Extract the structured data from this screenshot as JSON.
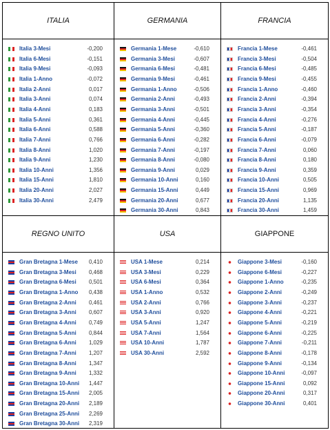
{
  "panels": [
    {
      "title": "ITALIA",
      "rows": [
        {
          "name": "Italia 3-Mesi",
          "value": "-0,200"
        },
        {
          "name": "Italia 6-Mesi",
          "value": "-0,151"
        },
        {
          "name": "Italia 9-Mesi",
          "value": "-0,093"
        },
        {
          "name": "Italia 1-Anno",
          "value": "-0,072"
        },
        {
          "name": "Italia 2-Anni",
          "value": "0,017"
        },
        {
          "name": "Italia 3-Anni",
          "value": "0,074"
        },
        {
          "name": "Italia 4-Anni",
          "value": "0,183"
        },
        {
          "name": "Italia 5-Anni",
          "value": "0,361"
        },
        {
          "name": "Italia 6-Anni",
          "value": "0,588"
        },
        {
          "name": "Italia 7-Anni",
          "value": "0,766"
        },
        {
          "name": "Italia 8-Anni",
          "value": "1,020"
        },
        {
          "name": "Italia 9-Anni",
          "value": "1,230"
        },
        {
          "name": "Italia 10-Anni",
          "value": "1,356"
        },
        {
          "name": "Italia 15-Anni",
          "value": "1,810"
        },
        {
          "name": "Italia 20-Anni",
          "value": "2,027"
        },
        {
          "name": "Italia 30-Anni",
          "value": "2,479"
        }
      ]
    },
    {
      "title": "GERMANIA",
      "rows": [
        {
          "name": "Germania 1-Mese",
          "value": "-0,610"
        },
        {
          "name": "Germania 3-Mesi",
          "value": "-0,607"
        },
        {
          "name": "Germania 6-Mesi",
          "value": "-0,481"
        },
        {
          "name": "Germania 9-Mesi",
          "value": "-0,461"
        },
        {
          "name": "Germania 1-Anno",
          "value": "-0,506"
        },
        {
          "name": "Germania 2-Anni",
          "value": "-0,493"
        },
        {
          "name": "Germania 3-Anni",
          "value": "-0,501"
        },
        {
          "name": "Germania 4-Anni",
          "value": "-0,445"
        },
        {
          "name": "Germania 5-Anni",
          "value": "-0,360"
        },
        {
          "name": "Germania 6-Anni",
          "value": "-0,282"
        },
        {
          "name": "Germania 7-Anni",
          "value": "-0,197"
        },
        {
          "name": "Germania 8-Anni",
          "value": "-0,080"
        },
        {
          "name": "Germania 9-Anni",
          "value": "0,029"
        },
        {
          "name": "Germania 10-Anni",
          "value": "0,160"
        },
        {
          "name": "Germania 15-Anni",
          "value": "0,449"
        },
        {
          "name": "Germania 20-Anni",
          "value": "0,677"
        },
        {
          "name": "Germania 30-Anni",
          "value": "0,843"
        }
      ]
    },
    {
      "title": "FRANCIA",
      "rows": [
        {
          "name": "Francia 1-Mese",
          "value": "-0,461"
        },
        {
          "name": "Francia 3-Mesi",
          "value": "-0,504"
        },
        {
          "name": "Francia 6-Mesi",
          "value": "-0,485"
        },
        {
          "name": "Francia 9-Mesi",
          "value": "-0,455"
        },
        {
          "name": "Francia 1-Anno",
          "value": "-0,460"
        },
        {
          "name": "Francia 2-Anni",
          "value": "-0,394"
        },
        {
          "name": "Francia 3-Anni",
          "value": "-0,354"
        },
        {
          "name": "Francia 4-Anni",
          "value": "-0,276"
        },
        {
          "name": "Francia 5-Anni",
          "value": "-0,187"
        },
        {
          "name": "Francia 6-Anni",
          "value": "-0,079"
        },
        {
          "name": "Francia 7-Anni",
          "value": "0,060"
        },
        {
          "name": "Francia 8-Anni",
          "value": "0,180"
        },
        {
          "name": "Francia 9-Anni",
          "value": "0,359"
        },
        {
          "name": "Francia 10-Anni",
          "value": "0,505"
        },
        {
          "name": "Francia 15-Anni",
          "value": "0,969"
        },
        {
          "name": "Francia 20-Anni",
          "value": "1,135"
        },
        {
          "name": "Francia 30-Anni",
          "value": "1,459"
        }
      ]
    },
    {
      "title": "REGNO  UNITO",
      "rows": [
        {
          "name": "Gran Bretagna 1-Mese",
          "value": "0,410"
        },
        {
          "name": "Gran Bretagna 3-Mesi",
          "value": "0,468"
        },
        {
          "name": "Gran Bretagna 6-Mesi",
          "value": "0,501"
        },
        {
          "name": "Gran Bretagna 1-Anno",
          "value": "0,438"
        },
        {
          "name": "Gran Bretagna 2-Anni",
          "value": "0,461"
        },
        {
          "name": "Gran Bretagna 3-Anni",
          "value": "0,607"
        },
        {
          "name": "Gran Bretagna 4-Anni",
          "value": "0,749"
        },
        {
          "name": "Gran Bretagna 5-Anni",
          "value": "0,844"
        },
        {
          "name": "Gran Bretagna 6-Anni",
          "value": "1,029"
        },
        {
          "name": "Gran Bretagna 7-Anni",
          "value": "1,207"
        },
        {
          "name": "Gran Bretagna 8-Anni",
          "value": "1,347"
        },
        {
          "name": "Gran Bretagna 9-Anni",
          "value": "1,332"
        },
        {
          "name": "Gran Bretagna 10-Anni",
          "value": "1,447"
        },
        {
          "name": "Gran Bretagna 15-Anni",
          "value": "2,005"
        },
        {
          "name": "Gran Bretagna 20-Anni",
          "value": "2,189"
        },
        {
          "name": "Gran Bretagna 25-Anni",
          "value": "2,269"
        },
        {
          "name": "Gran Bretagna 30-Anni",
          "value": "2,319"
        }
      ]
    },
    {
      "title": "USA",
      "rows": [
        {
          "name": "USA 1-Mese",
          "value": "0,214"
        },
        {
          "name": "USA 3-Mesi",
          "value": "0,229"
        },
        {
          "name": "USA 6-Mesi",
          "value": "0,364"
        },
        {
          "name": "USA 1-Anno",
          "value": "0,532"
        },
        {
          "name": "USA 2-Anni",
          "value": "0,766"
        },
        {
          "name": "USA 3-Anni",
          "value": "0,920"
        },
        {
          "name": "USA 5-Anni",
          "value": "1,247"
        },
        {
          "name": "USA 7-Anni",
          "value": "1,564"
        },
        {
          "name": "USA 10-Anni",
          "value": "1,787"
        },
        {
          "name": "USA 30-Anni",
          "value": "2,592"
        }
      ]
    },
    {
      "title": "GIAPPONE",
      "rows": [
        {
          "name": "Giappone 3-Mesi",
          "value": "-0,160"
        },
        {
          "name": "Giappone 6-Mesi",
          "value": "-0,227"
        },
        {
          "name": "Giappone 1-Anno",
          "value": "-0,235"
        },
        {
          "name": "Giappone 2-Anni",
          "value": "-0,249"
        },
        {
          "name": "Giappone 3-Anni",
          "value": "-0,237"
        },
        {
          "name": "Giappone 4-Anni",
          "value": "-0,221"
        },
        {
          "name": "Giappone 5-Anni",
          "value": "-0,219"
        },
        {
          "name": "Giappone 6-Anni",
          "value": "-0,225"
        },
        {
          "name": "Giappone 7-Anni",
          "value": "-0,211"
        },
        {
          "name": "Giappone 8-Anni",
          "value": "-0,178"
        },
        {
          "name": "Giappone 9-Anni",
          "value": "-0,134"
        },
        {
          "name": "Giappone 10-Anni",
          "value": "-0,097"
        },
        {
          "name": "Giappone 15-Anni",
          "value": "0,092"
        },
        {
          "name": "Giappone 20-Anni",
          "value": "0,317"
        },
        {
          "name": "Giappone 30-Anni",
          "value": "0,401"
        }
      ]
    }
  ]
}
